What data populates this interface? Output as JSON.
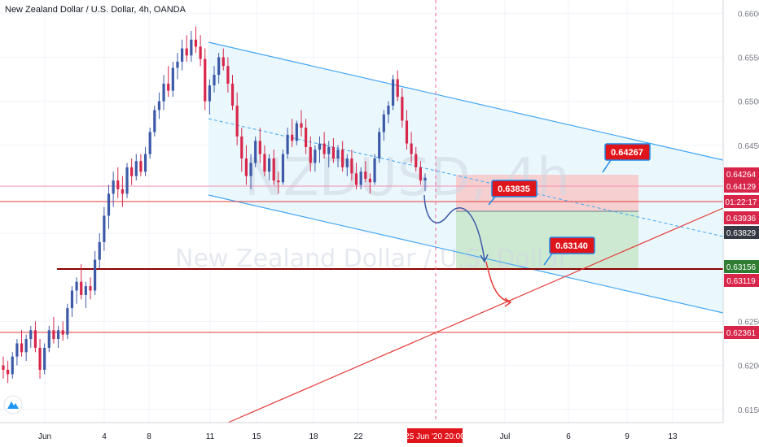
{
  "header": {
    "title": "New Zealand Dollar / U.S. Dollar, 4h, OANDA"
  },
  "watermark": {
    "symbol": "NZDUSD, 4h",
    "description": "New Zealand Dollar / U.S. Dollar"
  },
  "colors": {
    "up": "#3d5aa8",
    "down": "#d7264a",
    "channel": "#42a5f5",
    "red_line": "#e53935",
    "dark_red": "#8b0000",
    "profit_zone": "#c8e6c9",
    "loss_zone": "#f8c9c9",
    "annotation": "#e0151b"
  },
  "chart_data": {
    "type": "candlestick",
    "symbol": "NZDUSD",
    "timeframe": "4h",
    "ylim": [
      0.6135,
      0.6615
    ],
    "y_ticks": [
      "0.66000",
      "0.65500",
      "0.65000",
      "0.64500",
      "0.63500",
      "0.62500",
      "0.62000",
      "0.61500"
    ],
    "x_ticks": [
      "Jun",
      "4",
      "8",
      "11",
      "15",
      "18",
      "22",
      "Jul",
      "6",
      "9",
      "13"
    ],
    "current_time_label": "25 Jun '20   20:00",
    "price_labels": [
      {
        "value": "0.64264",
        "type": "red"
      },
      {
        "value": "0.64129",
        "type": "red"
      },
      {
        "value": "01:22:17",
        "type": "red"
      },
      {
        "value": "0.63936",
        "type": "red"
      },
      {
        "value": "0.63829",
        "type": "dark"
      },
      {
        "value": "0.63156",
        "type": "green"
      },
      {
        "value": "0.63119",
        "type": "red"
      },
      {
        "value": "0.62361",
        "type": "red"
      }
    ],
    "annotations": [
      "0.64267",
      "0.63835",
      "0.63140"
    ],
    "candles": [
      [
        0.62,
        0.621,
        0.6185,
        0.6195
      ],
      [
        0.6195,
        0.6205,
        0.618,
        0.619
      ],
      [
        0.619,
        0.6215,
        0.6185,
        0.621
      ],
      [
        0.621,
        0.623,
        0.62,
        0.6225
      ],
      [
        0.6225,
        0.624,
        0.621,
        0.6215
      ],
      [
        0.6215,
        0.6235,
        0.6205,
        0.623
      ],
      [
        0.623,
        0.6245,
        0.622,
        0.624
      ],
      [
        0.624,
        0.625,
        0.6215,
        0.622
      ],
      [
        0.622,
        0.623,
        0.6185,
        0.6195
      ],
      [
        0.6195,
        0.6225,
        0.619,
        0.622
      ],
      [
        0.622,
        0.6245,
        0.6215,
        0.624
      ],
      [
        0.624,
        0.6255,
        0.6225,
        0.623
      ],
      [
        0.623,
        0.6245,
        0.622,
        0.624
      ],
      [
        0.624,
        0.625,
        0.6228,
        0.6235
      ],
      [
        0.6235,
        0.627,
        0.623,
        0.6265
      ],
      [
        0.6265,
        0.629,
        0.6255,
        0.6285
      ],
      [
        0.6285,
        0.63,
        0.627,
        0.6295
      ],
      [
        0.6295,
        0.6315,
        0.6275,
        0.628
      ],
      [
        0.628,
        0.6295,
        0.6265,
        0.629
      ],
      [
        0.629,
        0.63,
        0.6275,
        0.6285
      ],
      [
        0.6285,
        0.633,
        0.628,
        0.632
      ],
      [
        0.632,
        0.635,
        0.631,
        0.634
      ],
      [
        0.634,
        0.638,
        0.633,
        0.637
      ],
      [
        0.637,
        0.6405,
        0.6355,
        0.6395
      ],
      [
        0.6395,
        0.642,
        0.638,
        0.641
      ],
      [
        0.641,
        0.6425,
        0.639,
        0.64
      ],
      [
        0.64,
        0.6415,
        0.638,
        0.6395
      ],
      [
        0.6395,
        0.643,
        0.639,
        0.6425
      ],
      [
        0.6425,
        0.6435,
        0.6405,
        0.6415
      ],
      [
        0.6415,
        0.644,
        0.641,
        0.6432
      ],
      [
        0.6432,
        0.644,
        0.6415,
        0.642
      ],
      [
        0.642,
        0.6448,
        0.6415,
        0.644
      ],
      [
        0.644,
        0.647,
        0.6435,
        0.6465
      ],
      [
        0.6465,
        0.6495,
        0.646,
        0.649
      ],
      [
        0.649,
        0.651,
        0.648,
        0.65
      ],
      [
        0.65,
        0.653,
        0.649,
        0.652
      ],
      [
        0.652,
        0.654,
        0.6505,
        0.6512
      ],
      [
        0.6512,
        0.6545,
        0.6505,
        0.6538
      ],
      [
        0.6538,
        0.6555,
        0.6525,
        0.6545
      ],
      [
        0.6545,
        0.657,
        0.6535,
        0.656
      ],
      [
        0.656,
        0.6575,
        0.6545,
        0.6552
      ],
      [
        0.6552,
        0.658,
        0.6545,
        0.657
      ],
      [
        0.657,
        0.6585,
        0.6555,
        0.6562
      ],
      [
        0.6562,
        0.6575,
        0.654,
        0.6548
      ],
      [
        0.6548,
        0.656,
        0.649,
        0.65
      ],
      [
        0.65,
        0.6525,
        0.6485,
        0.6518
      ],
      [
        0.6518,
        0.654,
        0.651,
        0.653
      ],
      [
        0.653,
        0.6555,
        0.652,
        0.655
      ],
      [
        0.655,
        0.656,
        0.6535,
        0.654
      ],
      [
        0.654,
        0.655,
        0.651,
        0.652
      ],
      [
        0.652,
        0.653,
        0.649,
        0.6495
      ],
      [
        0.6495,
        0.651,
        0.645,
        0.646
      ],
      [
        0.646,
        0.647,
        0.642,
        0.6435
      ],
      [
        0.6435,
        0.645,
        0.6405,
        0.6415
      ],
      [
        0.6415,
        0.644,
        0.64,
        0.643
      ],
      [
        0.643,
        0.646,
        0.6425,
        0.6455
      ],
      [
        0.6455,
        0.647,
        0.643,
        0.644
      ],
      [
        0.644,
        0.645,
        0.6415,
        0.642
      ],
      [
        0.642,
        0.644,
        0.641,
        0.6435
      ],
      [
        0.6435,
        0.6445,
        0.6405,
        0.641
      ],
      [
        0.641,
        0.642,
        0.6395,
        0.6408
      ],
      [
        0.6408,
        0.6445,
        0.6405,
        0.644
      ],
      [
        0.644,
        0.647,
        0.6435,
        0.6462
      ],
      [
        0.6462,
        0.648,
        0.6448,
        0.6455
      ],
      [
        0.6455,
        0.6478,
        0.645,
        0.6475
      ],
      [
        0.6475,
        0.649,
        0.646,
        0.647
      ],
      [
        0.647,
        0.648,
        0.644,
        0.6448
      ],
      [
        0.6448,
        0.646,
        0.642,
        0.643
      ],
      [
        0.643,
        0.645,
        0.642,
        0.6445
      ],
      [
        0.6445,
        0.646,
        0.643,
        0.6452
      ],
      [
        0.6452,
        0.6465,
        0.6435,
        0.644
      ],
      [
        0.644,
        0.6455,
        0.6425,
        0.6448
      ],
      [
        0.6448,
        0.6458,
        0.643,
        0.6435
      ],
      [
        0.6435,
        0.645,
        0.6425,
        0.6445
      ],
      [
        0.6445,
        0.6455,
        0.642,
        0.6425
      ],
      [
        0.6425,
        0.644,
        0.6415,
        0.6435
      ],
      [
        0.6435,
        0.6445,
        0.641,
        0.6418
      ],
      [
        0.6418,
        0.643,
        0.64,
        0.6405
      ],
      [
        0.6405,
        0.6425,
        0.64,
        0.642
      ],
      [
        0.642,
        0.6432,
        0.6408,
        0.6412
      ],
      [
        0.6412,
        0.6418,
        0.6395,
        0.6408
      ],
      [
        0.6408,
        0.644,
        0.6405,
        0.6435
      ],
      [
        0.6435,
        0.647,
        0.643,
        0.6465
      ],
      [
        0.6465,
        0.649,
        0.6455,
        0.6485
      ],
      [
        0.6485,
        0.65,
        0.6475,
        0.6495
      ],
      [
        0.6495,
        0.653,
        0.649,
        0.6525
      ],
      [
        0.6525,
        0.6535,
        0.65,
        0.6505
      ],
      [
        0.6505,
        0.6515,
        0.647,
        0.6478
      ],
      [
        0.6478,
        0.649,
        0.6445,
        0.6452
      ],
      [
        0.6452,
        0.6465,
        0.643,
        0.644
      ],
      [
        0.644,
        0.6448,
        0.642,
        0.6425
      ],
      [
        0.6425,
        0.6432,
        0.6405,
        0.641
      ],
      [
        0.641,
        0.6418,
        0.6398,
        0.6413
      ]
    ]
  }
}
